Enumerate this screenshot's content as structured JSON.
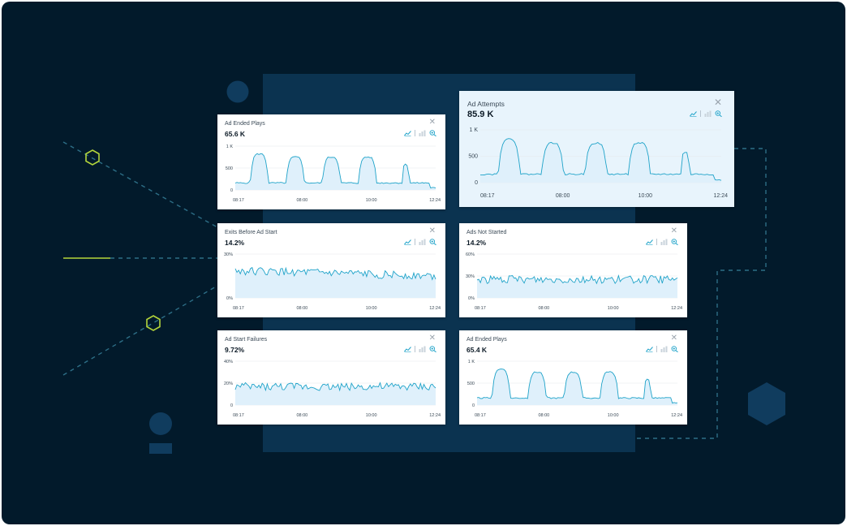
{
  "colors": {
    "frame": "#021a2b",
    "panel": "#0b3350",
    "accent_line": "#1fa3c9",
    "accent_fill": "#dff0fb",
    "hex_green": "#b4d63b",
    "hex_navy": "#103c5e",
    "dashed": "#2d6e86"
  },
  "cards": [
    {
      "id": "ad-ended-plays-1",
      "title": "Ad Ended Plays",
      "value": "65.6 K",
      "y_labels": [
        "1 K",
        "500",
        "0"
      ],
      "x_labels": [
        "08:17",
        "08:00",
        "10:00",
        "12:24"
      ],
      "pattern": "peaks",
      "icons": [
        "line-chart-icon",
        "bar-chart-icon",
        "zoom-icon"
      ],
      "close_icon": "close-icon"
    },
    {
      "id": "ad-attempts",
      "title": "Ad Attempts",
      "value": "85.9 K",
      "y_labels": [
        "1 K",
        "500",
        "0"
      ],
      "x_labels": [
        "08:17",
        "08:00",
        "10:00",
        "12:24"
      ],
      "pattern": "peaks",
      "highlighted": true,
      "icons": [
        "line-chart-icon",
        "bar-chart-icon",
        "zoom-icon"
      ],
      "close_icon": "close-icon"
    },
    {
      "id": "exits-before-ad-start",
      "title": "Exits Before Ad Start",
      "value": "14.2%",
      "y_labels": [
        "30%",
        "0%"
      ],
      "x_labels": [
        "08:17",
        "08:00",
        "10:00",
        "12:24"
      ],
      "pattern": "noise-high",
      "icons": [
        "line-chart-icon",
        "bar-chart-icon",
        "zoom-icon"
      ],
      "close_icon": "close-icon"
    },
    {
      "id": "ads-not-started",
      "title": "Ads Not Started",
      "value": "14.2%",
      "y_labels": [
        "60%",
        "30%",
        "0%"
      ],
      "x_labels": [
        "08:17",
        "08:00",
        "10:00",
        "12:24"
      ],
      "pattern": "noise-mid",
      "icons": [
        "line-chart-icon",
        "bar-chart-icon",
        "zoom-icon"
      ],
      "close_icon": "close-icon"
    },
    {
      "id": "ad-start-failures",
      "title": "Ad Start Failures",
      "value": "9.72%",
      "y_labels": [
        "40%",
        "20%",
        "0"
      ],
      "x_labels": [
        "08:17",
        "08:00",
        "10:00",
        "12:24"
      ],
      "pattern": "noise-mid",
      "icons": [
        "line-chart-icon",
        "bar-chart-icon",
        "zoom-icon"
      ],
      "close_icon": "close-icon"
    },
    {
      "id": "ad-ended-plays-2",
      "title": "Ad Ended Plays",
      "value": "65.4 K",
      "y_labels": [
        "1 K",
        "500",
        "0"
      ],
      "x_labels": [
        "08:17",
        "08:00",
        "10:00",
        "12:24"
      ],
      "pattern": "peaks",
      "icons": [
        "line-chart-icon",
        "bar-chart-icon",
        "zoom-icon"
      ],
      "close_icon": "close-icon"
    }
  ]
}
